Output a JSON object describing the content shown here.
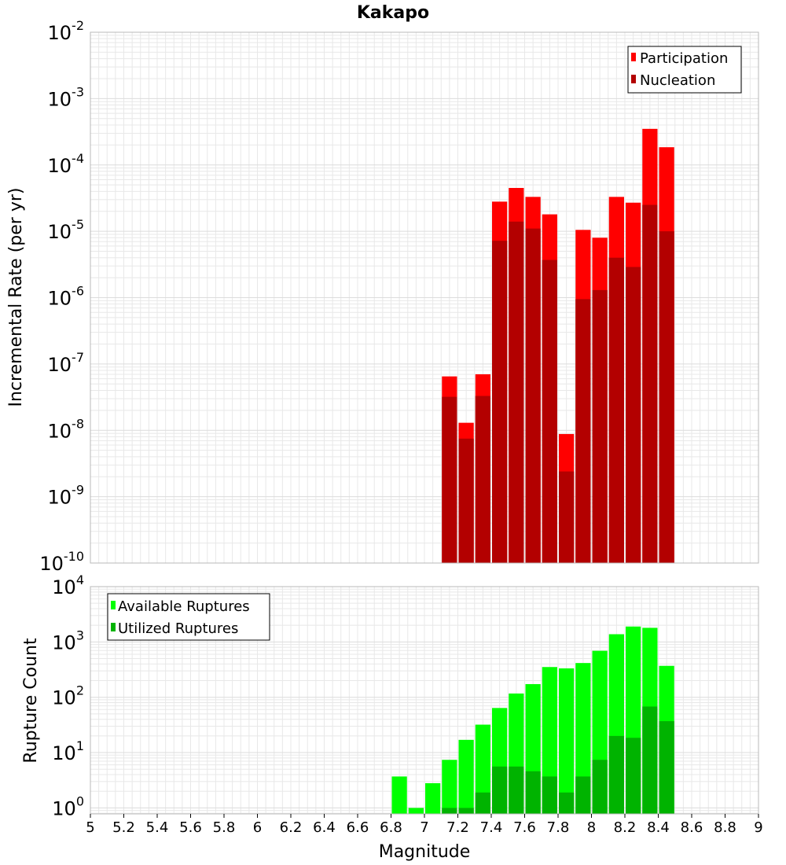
{
  "chart_data": [
    {
      "type": "bar",
      "title": "Kakapo",
      "xlabel": "",
      "ylabel": "Incremental Rate (per yr)",
      "yscale": "log",
      "ylim": [
        1e-10,
        0.01
      ],
      "xlim": [
        5,
        9
      ],
      "bar_width": 0.1,
      "grid": true,
      "legend_position": "top-right",
      "x": [
        7.15,
        7.25,
        7.35,
        7.45,
        7.55,
        7.65,
        7.75,
        7.85,
        7.95,
        8.05,
        8.15,
        8.25,
        8.35,
        8.45
      ],
      "series": [
        {
          "name": "Participation",
          "color": "#ff0000",
          "values": [
            6.5e-08,
            1.3e-08,
            7e-08,
            2.8e-05,
            4.5e-05,
            3.3e-05,
            1.8e-05,
            8.8e-09,
            1.05e-05,
            8e-06,
            3.3e-05,
            2.7e-05,
            0.00035,
            0.000185
          ]
        },
        {
          "name": "Nucleation",
          "color": "#b30000",
          "values": [
            3.2e-08,
            7.5e-09,
            3.3e-08,
            7.2e-06,
            1.4e-05,
            1.1e-05,
            3.7e-06,
            2.4e-09,
            9.5e-07,
            1.3e-06,
            4e-06,
            2.9e-06,
            2.5e-05,
            1e-05
          ]
        }
      ]
    },
    {
      "type": "bar",
      "title": "",
      "xlabel": "Magnitude",
      "ylabel": "Rupture Count",
      "yscale": "log",
      "ylim": [
        0.78,
        10000
      ],
      "xlim": [
        5,
        9
      ],
      "bar_width": 0.1,
      "grid": true,
      "legend_position": "top-left",
      "x": [
        6.85,
        6.95,
        7.05,
        7.15,
        7.25,
        7.35,
        7.45,
        7.55,
        7.65,
        7.75,
        7.85,
        7.95,
        8.05,
        8.15,
        8.25,
        8.35,
        8.45
      ],
      "series": [
        {
          "name": "Available Ruptures",
          "color": "#00ff00",
          "values": [
            3.7,
            1,
            2.8,
            7.4,
            17,
            32,
            64,
            117,
            173,
            352,
            333,
            416,
            692,
            1380,
            1900,
            1800,
            370
          ]
        },
        {
          "name": "Utilized Ruptures",
          "color": "#00b300",
          "values": [
            0,
            0,
            0,
            1,
            1,
            1.9,
            5.6,
            5.6,
            4.6,
            3.7,
            1.9,
            3.7,
            7.4,
            20,
            18.5,
            68,
            37
          ]
        }
      ]
    }
  ],
  "x_ticks": [
    "5",
    "5.2",
    "5.4",
    "5.6",
    "5.8",
    "6",
    "6.2",
    "6.4",
    "6.6",
    "6.8",
    "7",
    "7.2",
    "7.4",
    "7.6",
    "7.8",
    "8",
    "8.2",
    "8.4",
    "8.6",
    "8.8",
    "9"
  ],
  "top_y_ticks": [
    {
      "base": "10",
      "exp": "-2"
    },
    {
      "base": "10",
      "exp": "-3"
    },
    {
      "base": "10",
      "exp": "-4"
    },
    {
      "base": "10",
      "exp": "-5"
    },
    {
      "base": "10",
      "exp": "-6"
    },
    {
      "base": "10",
      "exp": "-7"
    },
    {
      "base": "10",
      "exp": "-8"
    },
    {
      "base": "10",
      "exp": "-9"
    },
    {
      "base": "10",
      "exp": "-10"
    }
  ],
  "bottom_y_ticks": [
    {
      "base": "10",
      "exp": "4"
    },
    {
      "base": "10",
      "exp": "3"
    },
    {
      "base": "10",
      "exp": "2"
    },
    {
      "base": "10",
      "exp": "1"
    },
    {
      "base": "10",
      "exp": "0"
    }
  ],
  "colors": {
    "participation": "#ff0000",
    "nucleation": "#b30000",
    "available": "#00ff00",
    "utilized": "#00b300",
    "grid": "#e8e8e8",
    "frame": "#b8b8b8"
  }
}
